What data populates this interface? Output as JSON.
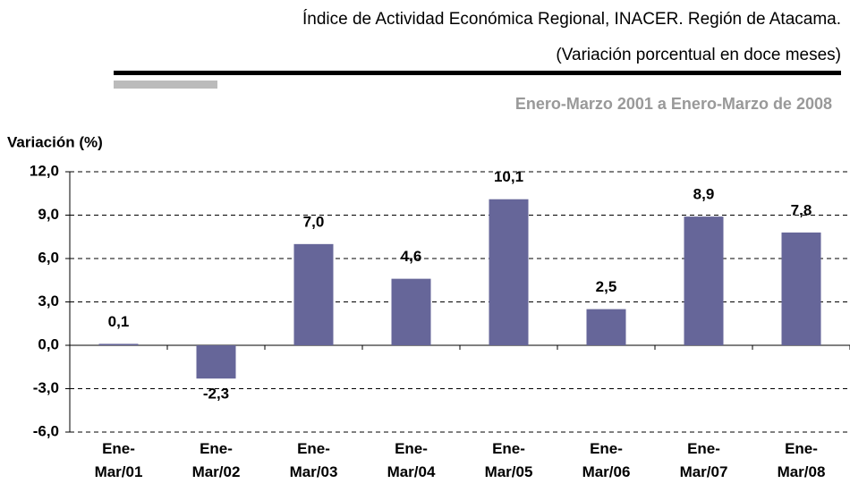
{
  "chart_data": {
    "type": "bar",
    "title": "Índice de Actividad Económica Regional, INACER. Región de Atacama.",
    "subtitle": "(Variación porcentual en doce meses)",
    "period": "Enero-Marzo 2001 a Enero-Marzo de 2008",
    "y_label": "Variación (%)",
    "categories": [
      "Ene-Mar/01",
      "Ene-Mar/02",
      "Ene-Mar/03",
      "Ene-Mar/04",
      "Ene-Mar/05",
      "Ene-Mar/06",
      "Ene-Mar/07",
      "Ene-Mar/08"
    ],
    "values": [
      0.1,
      -2.3,
      7.0,
      4.6,
      10.1,
      2.5,
      8.9,
      7.8
    ],
    "value_labels": [
      "0,1",
      "-2,3",
      "7,0",
      "4,6",
      "10,1",
      "2,5",
      "8,9",
      "7,8"
    ],
    "color": "#666699",
    "ylim": [
      -6,
      12
    ],
    "yticks": [
      {
        "value": -6,
        "label": "-6,0"
      },
      {
        "value": -3,
        "label": "-3,0"
      },
      {
        "value": 0,
        "label": "0,0"
      },
      {
        "value": 3,
        "label": "3,0"
      },
      {
        "value": 6,
        "label": "6,0"
      },
      {
        "value": 9,
        "label": "9,0"
      },
      {
        "value": 12,
        "label": "12,0"
      }
    ],
    "grid": true
  }
}
